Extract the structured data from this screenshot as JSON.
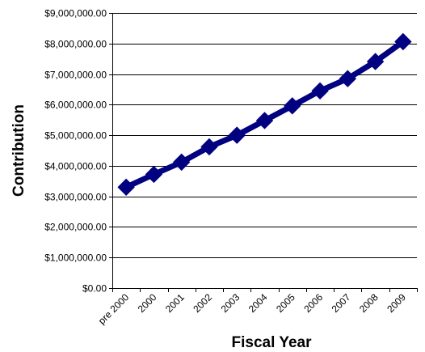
{
  "chart_data": {
    "type": "line",
    "title": "",
    "xlabel": "Fiscal Year",
    "ylabel": "Contribution",
    "categories": [
      "pre 2000",
      "2000",
      "2001",
      "2002",
      "2003",
      "2004",
      "2005",
      "2006",
      "2007",
      "2008",
      "2009"
    ],
    "series": [
      {
        "values": [
          3300000,
          3720000,
          4120000,
          4620000,
          5000000,
          5480000,
          5960000,
          6450000,
          6850000,
          7410000,
          8060000
        ],
        "color": "#000080",
        "marker": "diamond"
      }
    ],
    "ylim": [
      0,
      9000000
    ],
    "y_ticks": [
      0,
      1000000,
      2000000,
      3000000,
      4000000,
      5000000,
      6000000,
      7000000,
      8000000,
      9000000
    ],
    "y_tick_labels": [
      "$0.00",
      "$1,000,000.00",
      "$2,000,000.00",
      "$3,000,000.00",
      "$4,000,000.00",
      "$5,000,000.00",
      "$6,000,000.00",
      "$7,000,000.00",
      "$8,000,000.00",
      "$9,000,000.00"
    ],
    "grid": true,
    "legend": "none"
  }
}
